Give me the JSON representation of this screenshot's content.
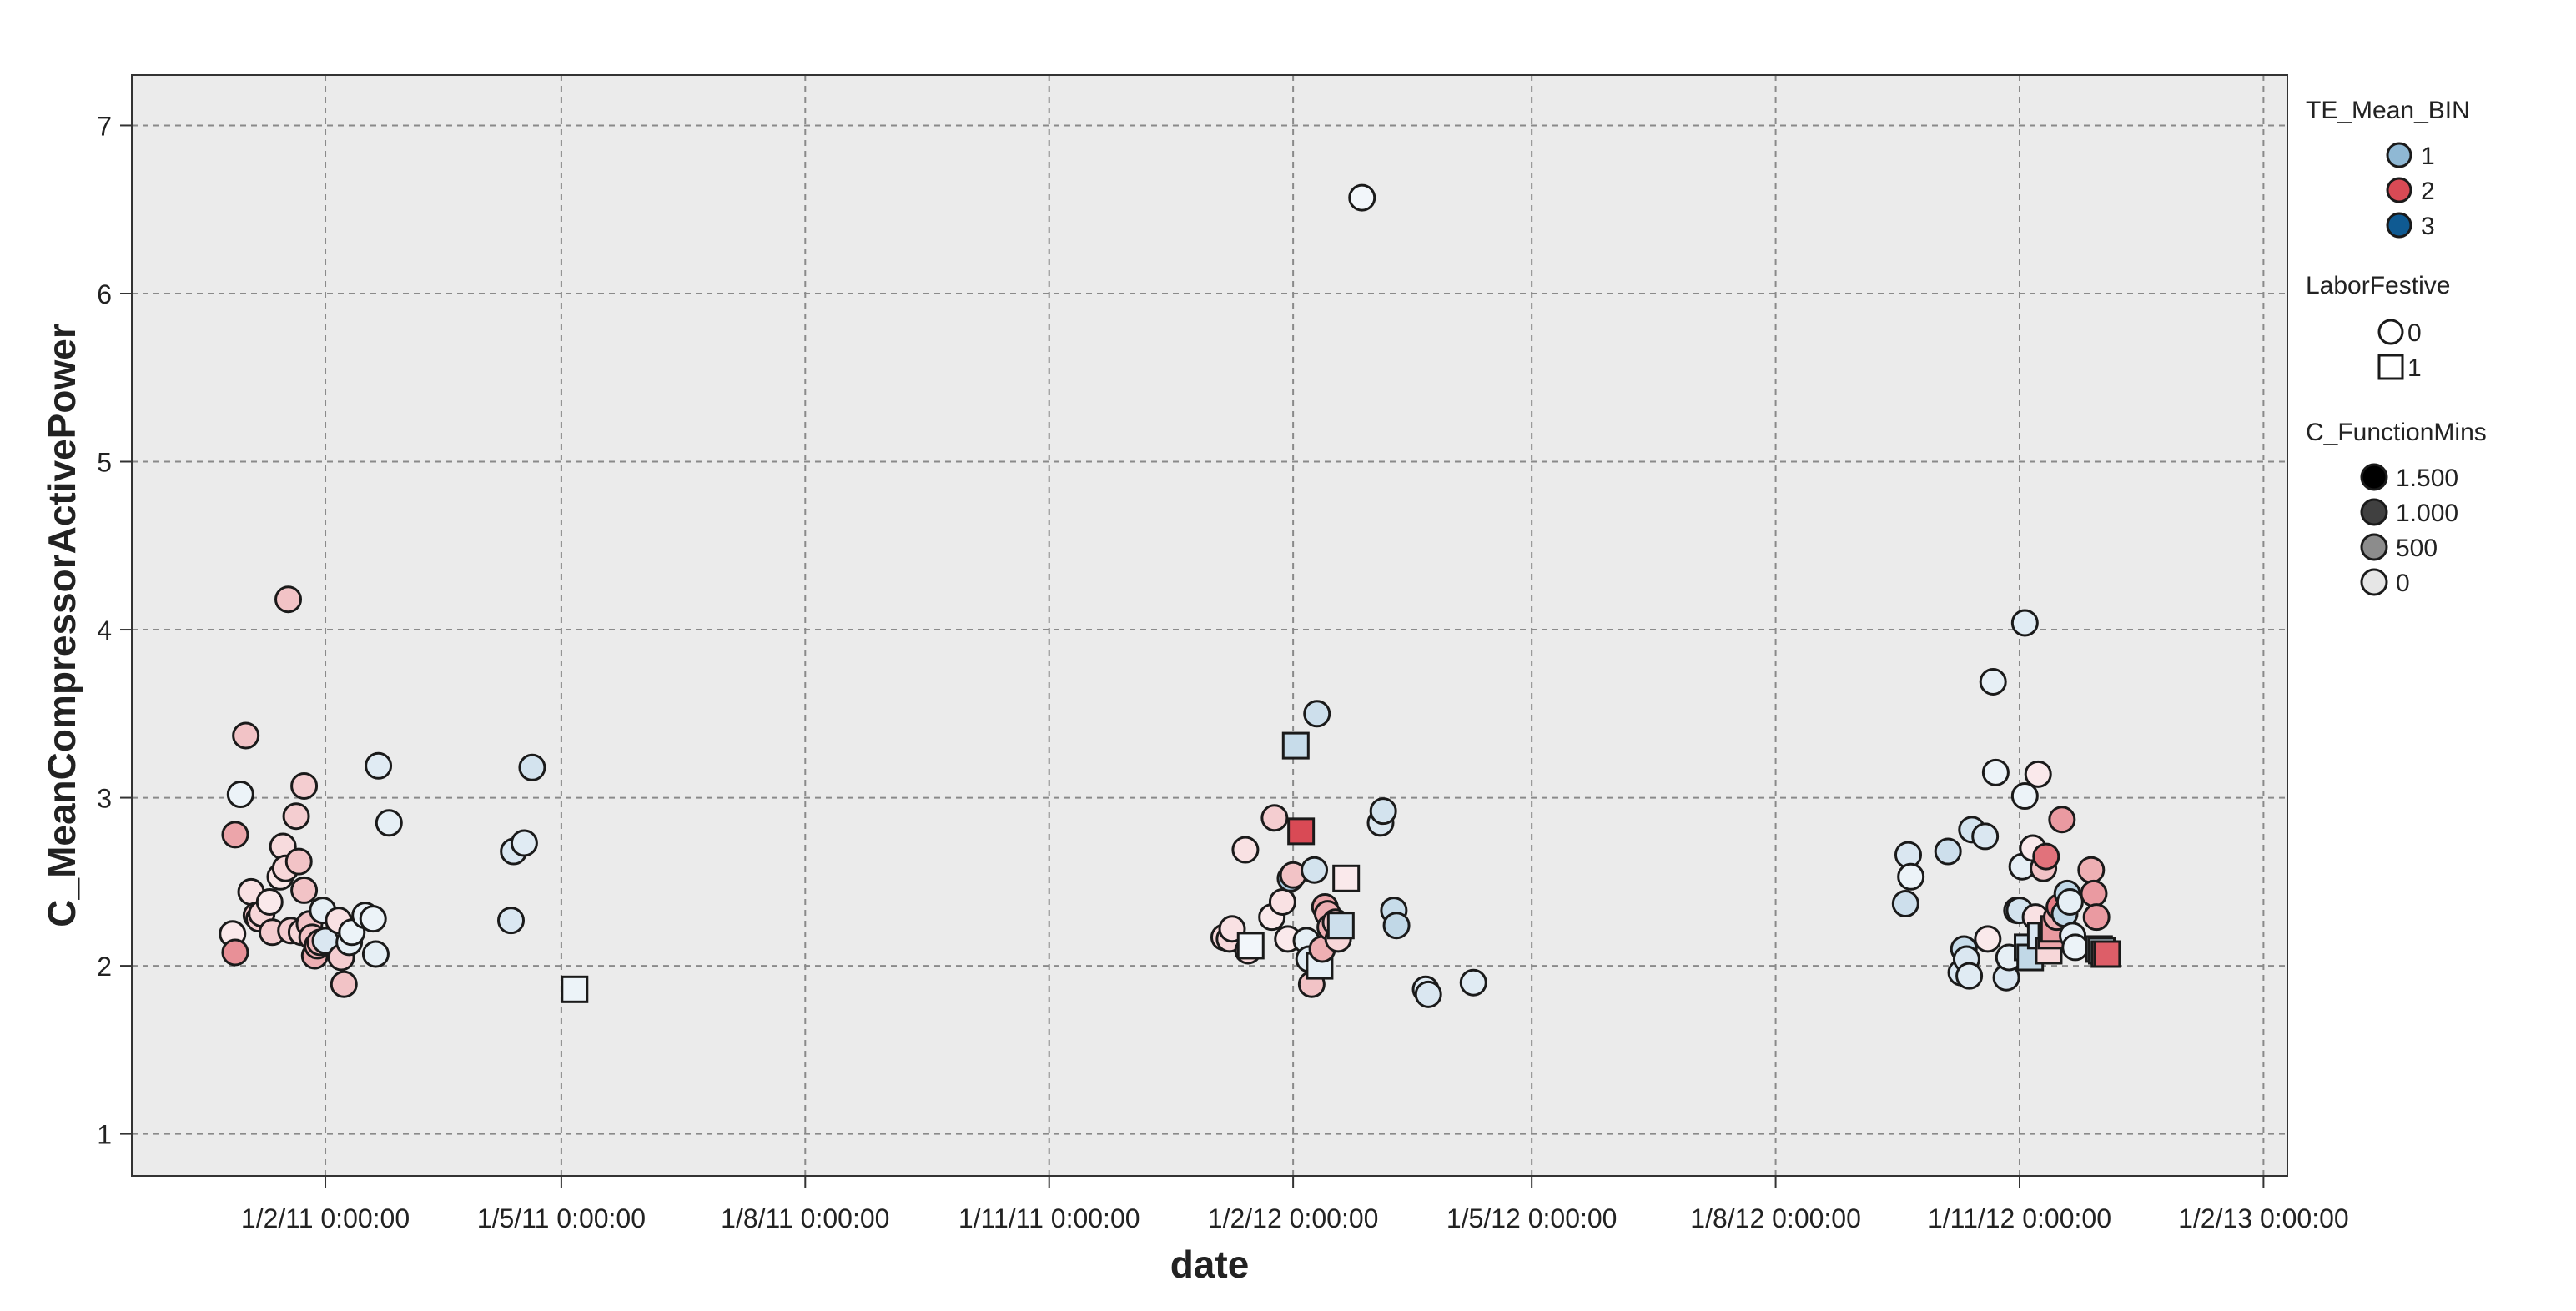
{
  "chart_data": {
    "type": "scatter",
    "xlabel": "date",
    "ylabel": "C_MeanCompressorActivePower",
    "x_axis": {
      "type": "date",
      "xlim": [
        "2010-11-20",
        "2013-02-10"
      ],
      "ticks": [
        {
          "date": "2011-02-01",
          "label": "1/2/11 0:00:00"
        },
        {
          "date": "2011-05-01",
          "label": "1/5/11 0:00:00"
        },
        {
          "date": "2011-08-01",
          "label": "1/8/11 0:00:00"
        },
        {
          "date": "2011-11-01",
          "label": "1/11/11 0:00:00"
        },
        {
          "date": "2012-02-01",
          "label": "1/2/12 0:00:00"
        },
        {
          "date": "2012-05-01",
          "label": "1/5/12 0:00:00"
        },
        {
          "date": "2012-08-01",
          "label": "1/8/12 0:00:00"
        },
        {
          "date": "2012-11-01",
          "label": "1/11/12 0:00:00"
        },
        {
          "date": "2013-02-01",
          "label": "1/2/13 0:00:00"
        }
      ]
    },
    "y_axis": {
      "ylim": [
        0.75,
        7.3
      ],
      "ticks": [
        1,
        2,
        3,
        4,
        5,
        6,
        7
      ]
    },
    "grid": true,
    "legend_position": "right",
    "colors": {
      "plot_background": "#ebebeb",
      "grid": "#8a8a8a",
      "bin_1": "#8fb8d4",
      "bin_2": "#d94a55",
      "bin_3": "#0f5a92",
      "function_mins_low": "#ffffff",
      "function_mins_high": "#000000"
    },
    "legend": {
      "color_title": "TE_Mean_BIN",
      "color_items": [
        {
          "label": "1",
          "color": "#8fb8d4"
        },
        {
          "label": "2",
          "color": "#d94a55"
        },
        {
          "label": "3",
          "color": "#0f5a92"
        }
      ],
      "shape_title": "LaborFestive",
      "shape_items": [
        {
          "label": "0",
          "shape": "circle"
        },
        {
          "label": "1",
          "shape": "square"
        }
      ],
      "size_title": "C_FunctionMins",
      "size_items": [
        {
          "label": "1.500",
          "shade": "#000000"
        },
        {
          "label": "1.000",
          "shade": "#404040"
        },
        {
          "label": "500",
          "shade": "#8c8c8c"
        },
        {
          "label": "0",
          "shade": "#e6e6e6"
        }
      ]
    },
    "point_fields": [
      "date",
      "value",
      "TE_Mean_BIN",
      "LaborFestive",
      "C_FunctionMins"
    ],
    "points": [
      [
        "2010-12-28",
        2.19,
        2,
        0,
        100
      ],
      [
        "2010-12-29",
        2.78,
        2,
        0,
        450
      ],
      [
        "2010-12-29",
        2.08,
        2,
        0,
        550
      ],
      [
        "2010-12-31",
        3.02,
        1,
        0,
        150
      ],
      [
        "2011-01-02",
        3.37,
        2,
        0,
        300
      ],
      [
        "2011-01-04",
        2.44,
        2,
        0,
        150
      ],
      [
        "2011-01-06",
        2.3,
        2,
        0,
        300
      ],
      [
        "2011-01-07",
        2.28,
        2,
        0,
        250
      ],
      [
        "2011-01-08",
        2.31,
        2,
        0,
        200
      ],
      [
        "2011-01-11",
        2.38,
        2,
        0,
        80
      ],
      [
        "2011-01-12",
        2.2,
        2,
        0,
        250
      ],
      [
        "2011-01-15",
        2.53,
        2,
        0,
        120
      ],
      [
        "2011-01-16",
        2.71,
        2,
        0,
        180
      ],
      [
        "2011-01-17",
        2.58,
        2,
        0,
        200
      ],
      [
        "2011-01-18",
        4.18,
        2,
        0,
        300
      ],
      [
        "2011-01-19",
        2.21,
        2,
        0,
        250
      ],
      [
        "2011-01-21",
        2.89,
        2,
        0,
        250
      ],
      [
        "2011-01-22",
        2.62,
        2,
        0,
        300
      ],
      [
        "2011-01-23",
        2.2,
        2,
        0,
        200
      ],
      [
        "2011-01-24",
        2.45,
        2,
        0,
        300
      ],
      [
        "2011-01-24",
        3.07,
        2,
        0,
        250
      ],
      [
        "2011-01-26",
        2.25,
        2,
        0,
        300
      ],
      [
        "2011-01-27",
        2.17,
        2,
        0,
        300
      ],
      [
        "2011-01-28",
        2.06,
        2,
        0,
        400
      ],
      [
        "2011-01-29",
        2.12,
        2,
        0,
        400
      ],
      [
        "2011-01-30",
        2.14,
        2,
        0,
        350
      ],
      [
        "2011-01-31",
        2.33,
        1,
        0,
        200
      ],
      [
        "2011-02-01",
        2.15,
        1,
        0,
        300
      ],
      [
        "2011-02-06",
        2.27,
        2,
        0,
        150
      ],
      [
        "2011-02-07",
        2.05,
        2,
        0,
        250
      ],
      [
        "2011-02-08",
        1.89,
        2,
        0,
        300
      ],
      [
        "2011-02-10",
        2.14,
        1,
        0,
        200
      ],
      [
        "2011-02-11",
        2.2,
        1,
        0,
        150
      ],
      [
        "2011-02-16",
        2.3,
        1,
        0,
        150
      ],
      [
        "2011-02-19",
        2.28,
        1,
        0,
        150
      ],
      [
        "2011-02-20",
        2.07,
        1,
        0,
        200
      ],
      [
        "2011-02-21",
        3.19,
        1,
        0,
        250
      ],
      [
        "2011-02-25",
        2.85,
        1,
        0,
        200
      ],
      [
        "2011-04-12",
        2.27,
        1,
        0,
        300
      ],
      [
        "2011-04-13",
        2.68,
        1,
        0,
        300
      ],
      [
        "2011-04-17",
        2.73,
        1,
        0,
        250
      ],
      [
        "2011-04-20",
        3.18,
        1,
        0,
        350
      ],
      [
        "2011-05-06",
        1.86,
        1,
        1,
        150
      ],
      [
        "2012-01-06",
        2.17,
        2,
        0,
        200
      ],
      [
        "2012-01-08",
        2.16,
        2,
        0,
        200
      ],
      [
        "2012-01-09",
        2.22,
        2,
        0,
        150
      ],
      [
        "2012-01-14",
        2.69,
        2,
        0,
        150
      ],
      [
        "2012-01-15",
        2.09,
        2,
        0,
        200
      ],
      [
        "2012-01-16",
        2.12,
        1,
        1,
        100
      ],
      [
        "2012-01-24",
        2.29,
        2,
        0,
        100
      ],
      [
        "2012-01-25",
        2.88,
        2,
        0,
        250
      ],
      [
        "2012-01-28",
        2.38,
        2,
        0,
        150
      ],
      [
        "2012-01-30",
        2.16,
        2,
        0,
        100
      ],
      [
        "2012-01-31",
        2.52,
        1,
        0,
        700
      ],
      [
        "2012-02-01",
        2.54,
        2,
        0,
        300
      ],
      [
        "2012-02-02",
        3.31,
        1,
        1,
        450
      ],
      [
        "2012-02-04",
        2.8,
        2,
        1,
        900
      ],
      [
        "2012-02-06",
        2.15,
        1,
        0,
        200
      ],
      [
        "2012-02-07",
        2.04,
        1,
        0,
        250
      ],
      [
        "2012-02-08",
        1.89,
        2,
        0,
        300
      ],
      [
        "2012-02-09",
        2.57,
        1,
        0,
        350
      ],
      [
        "2012-02-10",
        3.5,
        1,
        0,
        400
      ],
      [
        "2012-02-11",
        2.0,
        1,
        1,
        200
      ],
      [
        "2012-02-12",
        2.1,
        2,
        0,
        400
      ],
      [
        "2012-02-13",
        2.35,
        2,
        0,
        450
      ],
      [
        "2012-02-14",
        2.31,
        2,
        0,
        400
      ],
      [
        "2012-02-15",
        2.23,
        2,
        0,
        400
      ],
      [
        "2012-02-17",
        2.26,
        2,
        0,
        300
      ],
      [
        "2012-02-18",
        2.16,
        2,
        0,
        200
      ],
      [
        "2012-02-19",
        2.24,
        1,
        1,
        400
      ],
      [
        "2012-02-21",
        2.52,
        2,
        1,
        80
      ],
      [
        "2012-02-27",
        6.57,
        1,
        0,
        100
      ],
      [
        "2012-03-05",
        2.85,
        1,
        0,
        300
      ],
      [
        "2012-03-06",
        2.92,
        1,
        0,
        350
      ],
      [
        "2012-03-10",
        2.33,
        1,
        0,
        450
      ],
      [
        "2012-03-11",
        2.24,
        1,
        0,
        500
      ],
      [
        "2012-03-22",
        1.86,
        1,
        0,
        250
      ],
      [
        "2012-03-23",
        1.83,
        1,
        0,
        300
      ],
      [
        "2012-04-09",
        1.9,
        1,
        0,
        250
      ],
      [
        "2012-09-19",
        2.37,
        1,
        0,
        400
      ],
      [
        "2012-09-20",
        2.66,
        1,
        0,
        300
      ],
      [
        "2012-09-21",
        2.53,
        1,
        0,
        150
      ],
      [
        "2012-10-05",
        2.68,
        1,
        0,
        400
      ],
      [
        "2012-10-10",
        1.96,
        1,
        0,
        300
      ],
      [
        "2012-10-11",
        2.1,
        1,
        0,
        450
      ],
      [
        "2012-10-12",
        2.04,
        1,
        0,
        300
      ],
      [
        "2012-10-13",
        1.94,
        1,
        0,
        250
      ],
      [
        "2012-10-14",
        2.81,
        1,
        0,
        350
      ],
      [
        "2012-10-19",
        2.77,
        1,
        0,
        300
      ],
      [
        "2012-10-20",
        2.16,
        2,
        0,
        100
      ],
      [
        "2012-10-22",
        3.69,
        1,
        0,
        200
      ],
      [
        "2012-10-23",
        3.15,
        1,
        0,
        150
      ],
      [
        "2012-10-27",
        1.93,
        1,
        0,
        300
      ],
      [
        "2012-10-28",
        2.05,
        1,
        0,
        200
      ],
      [
        "2012-10-31",
        2.33,
        1,
        0,
        450
      ],
      [
        "2012-11-01",
        2.33,
        1,
        0,
        350
      ],
      [
        "2012-11-02",
        2.59,
        1,
        0,
        200
      ],
      [
        "2012-11-03",
        4.04,
        1,
        0,
        250
      ],
      [
        "2012-11-03",
        3.01,
        1,
        0,
        150
      ],
      [
        "2012-11-04",
        2.11,
        1,
        1,
        350
      ],
      [
        "2012-11-05",
        2.05,
        1,
        1,
        500
      ],
      [
        "2012-11-06",
        2.7,
        2,
        0,
        100
      ],
      [
        "2012-11-07",
        2.29,
        2,
        0,
        150
      ],
      [
        "2012-11-08",
        3.14,
        2,
        0,
        100
      ],
      [
        "2012-11-09",
        2.18,
        1,
        1,
        300
      ],
      [
        "2012-11-10",
        2.58,
        2,
        0,
        300
      ],
      [
        "2012-11-11",
        2.65,
        2,
        0,
        700
      ],
      [
        "2012-11-12",
        2.09,
        2,
        1,
        200
      ],
      [
        "2012-11-13",
        2.18,
        2,
        1,
        450
      ],
      [
        "2012-11-14",
        2.22,
        2,
        1,
        500
      ],
      [
        "2012-11-15",
        2.29,
        2,
        0,
        400
      ],
      [
        "2012-11-16",
        2.35,
        2,
        0,
        650
      ],
      [
        "2012-11-17",
        2.87,
        2,
        0,
        500
      ],
      [
        "2012-11-18",
        2.31,
        1,
        0,
        500
      ],
      [
        "2012-11-19",
        2.43,
        1,
        0,
        500
      ],
      [
        "2012-11-20",
        2.38,
        1,
        0,
        200
      ],
      [
        "2012-11-21",
        2.18,
        1,
        0,
        200
      ],
      [
        "2012-11-22",
        2.11,
        1,
        0,
        150
      ],
      [
        "2012-11-28",
        2.57,
        2,
        0,
        400
      ],
      [
        "2012-11-29",
        2.43,
        2,
        0,
        500
      ],
      [
        "2012-11-30",
        2.29,
        2,
        0,
        500
      ],
      [
        "2012-12-01",
        2.1,
        1,
        1,
        400
      ],
      [
        "2012-12-02",
        2.09,
        1,
        1,
        450
      ],
      [
        "2012-12-03",
        2.07,
        2,
        1,
        700
      ],
      [
        "2012-12-04",
        2.07,
        2,
        1,
        800
      ]
    ]
  }
}
